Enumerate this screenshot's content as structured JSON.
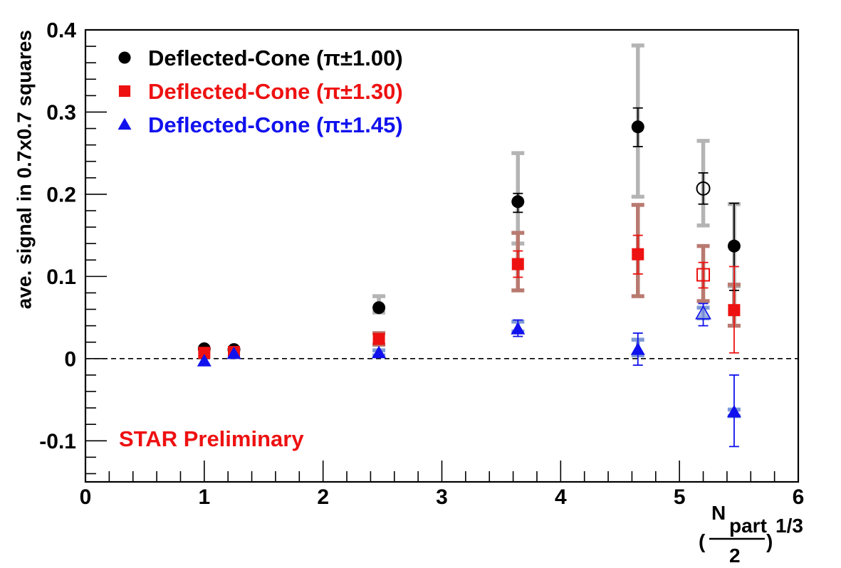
{
  "chart_data": {
    "type": "scatter",
    "title": "",
    "xlabel": {
      "open": "(",
      "num": "N",
      "num_sub": "part",
      "den": "2",
      "close": ")",
      "power": "1/3"
    },
    "ylabel": "ave. signal in 0.7x0.7 squares",
    "xlim": [
      0,
      6
    ],
    "ylim": [
      -0.15,
      0.4
    ],
    "x_ticks": [
      0,
      1,
      2,
      3,
      4,
      5,
      6
    ],
    "y_ticks": [
      -0.1,
      0,
      0.1,
      0.2,
      0.3,
      0.4
    ],
    "x_tick_labels": [
      "0",
      "1",
      "2",
      "3",
      "4",
      "5",
      "6"
    ],
    "y_tick_labels": [
      "-0.1",
      "0",
      "0.1",
      "0.2",
      "0.3",
      "0.4"
    ],
    "reference_line": {
      "y": 0,
      "style": "dashed"
    },
    "legend_position": "top-left",
    "annotation": {
      "text": "STAR Preliminary",
      "color": "#ee1111"
    },
    "series": [
      {
        "name": "Deflected-Cone (π±1.00)",
        "marker": "circle",
        "color": "#000000",
        "syst_color": "#b4b4b4",
        "points": [
          {
            "x": 1.0,
            "y": 0.012,
            "stat": [
              0.012,
              0.012
            ],
            "syst": null,
            "open": false
          },
          {
            "x": 1.25,
            "y": 0.011,
            "stat": [
              0.011,
              0.011
            ],
            "syst": null,
            "open": false
          },
          {
            "x": 2.47,
            "y": 0.062,
            "stat": [
              0.062,
              0.062
            ],
            "syst": [
              0.056,
              0.076
            ],
            "open": false
          },
          {
            "x": 3.64,
            "y": 0.191,
            "stat": [
              0.178,
              0.201
            ],
            "syst": [
              0.14,
              0.25
            ],
            "open": false
          },
          {
            "x": 4.65,
            "y": 0.282,
            "stat": [
              0.258,
              0.305
            ],
            "syst": [
              0.197,
              0.381
            ],
            "open": false
          },
          {
            "x": 5.2,
            "y": 0.207,
            "stat": [
              0.188,
              0.226
            ],
            "syst": [
              0.162,
              0.265
            ],
            "open": true
          },
          {
            "x": 5.46,
            "y": 0.137,
            "stat": [
              0.083,
              0.189
            ],
            "syst": [
              0.088,
              0.188
            ],
            "open": false
          }
        ]
      },
      {
        "name": "Deflected-Cone (π±1.30)",
        "marker": "square",
        "color": "#ee1111",
        "syst_color": "#b87a70",
        "points": [
          {
            "x": 1.0,
            "y": 0.007,
            "stat": [
              0.007,
              0.007
            ],
            "syst": null,
            "open": false
          },
          {
            "x": 1.25,
            "y": 0.008,
            "stat": [
              0.008,
              0.008
            ],
            "syst": null,
            "open": false
          },
          {
            "x": 2.47,
            "y": 0.024,
            "stat": [
              0.024,
              0.024
            ],
            "syst": [
              0.017,
              0.031
            ],
            "open": false
          },
          {
            "x": 3.64,
            "y": 0.115,
            "stat": [
              0.099,
              0.131
            ],
            "syst": [
              0.083,
              0.153
            ],
            "open": false
          },
          {
            "x": 4.65,
            "y": 0.127,
            "stat": [
              0.103,
              0.15
            ],
            "syst": [
              0.076,
              0.187
            ],
            "open": false
          },
          {
            "x": 5.2,
            "y": 0.102,
            "stat": [
              0.086,
              0.117
            ],
            "syst": [
              0.07,
              0.137
            ],
            "open": true
          },
          {
            "x": 5.46,
            "y": 0.059,
            "stat": [
              0.007,
              0.112
            ],
            "syst": [
              0.04,
              0.09
            ],
            "open": false
          }
        ]
      },
      {
        "name": "Deflected-Cone (π±1.45)",
        "marker": "triangle",
        "color": "#1111ee",
        "syst_color": "#7f9ad6",
        "points": [
          {
            "x": 1.0,
            "y": -0.003,
            "stat": [
              -0.003,
              -0.003
            ],
            "syst": null,
            "open": false
          },
          {
            "x": 1.25,
            "y": 0.006,
            "stat": [
              0.006,
              0.006
            ],
            "syst": null,
            "open": false
          },
          {
            "x": 2.47,
            "y": 0.007,
            "stat": [
              0.007,
              0.007
            ],
            "syst": [
              0.004,
              0.01
            ],
            "open": false
          },
          {
            "x": 3.64,
            "y": 0.036,
            "stat": [
              0.027,
              0.047
            ],
            "syst": [
              0.033,
              0.045
            ],
            "open": false
          },
          {
            "x": 4.65,
            "y": 0.011,
            "stat": [
              -0.008,
              0.031
            ],
            "syst": [
              0.004,
              0.023
            ],
            "open": false
          },
          {
            "x": 5.2,
            "y": 0.055,
            "stat": [
              0.04,
              0.067
            ],
            "syst": [
              0.049,
              0.062
            ],
            "open": true
          },
          {
            "x": 5.46,
            "y": -0.065,
            "stat": [
              -0.107,
              -0.02
            ],
            "syst": [
              -0.07,
              -0.062
            ],
            "open": false
          }
        ]
      }
    ]
  }
}
